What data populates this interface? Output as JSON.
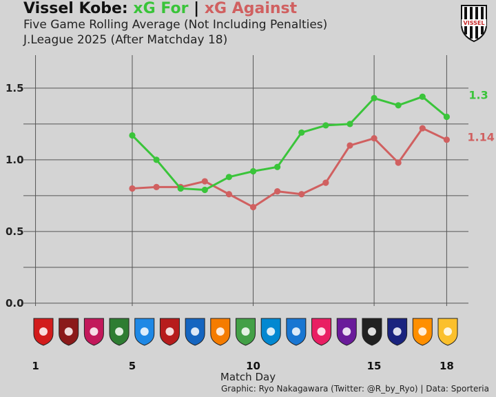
{
  "header": {
    "title_main": "Vissel Kobe:",
    "title_for": "xG For",
    "title_sep": "|",
    "title_against": "xG Against",
    "subtitle_1": "Five Game Rolling Average (Not Including Penalties)",
    "subtitle_2": "J.League 2025 (After Matchday 18)",
    "logo_text": "VISSEL"
  },
  "footer": {
    "credit": "Graphic: Ryo Nakagawara (Twitter: @R_by_Ryo) | Data: Sporteria"
  },
  "colors": {
    "xg_for": "#3ac43a",
    "xg_against": "#d06060",
    "background": "#d4d4d4",
    "grid": "#555555"
  },
  "opponent_badges": [
    {
      "md": 1,
      "color": "#d21c1c",
      "icon": "crest-red"
    },
    {
      "md": 2,
      "color": "#8b1a1a",
      "icon": "crest-maroon"
    },
    {
      "md": 3,
      "color": "#c2185b",
      "icon": "crest-pink"
    },
    {
      "md": 4,
      "color": "#2e7d32",
      "icon": "crest-green"
    },
    {
      "md": 5,
      "color": "#1e88e5",
      "icon": "crest-blue-green"
    },
    {
      "md": 6,
      "color": "#b71c1c",
      "icon": "crest-antler"
    },
    {
      "md": 7,
      "color": "#1565c0",
      "icon": "crest-yokohama"
    },
    {
      "md": 8,
      "color": "#f57c00",
      "icon": "crest-orange-blue"
    },
    {
      "md": 9,
      "color": "#43a047",
      "icon": "crest-tokyo-verdy"
    },
    {
      "md": 10,
      "color": "#0288d1",
      "icon": "crest-frontale"
    },
    {
      "md": 11,
      "color": "#1976d2",
      "icon": "crest-machida"
    },
    {
      "md": 12,
      "color": "#e91e63",
      "icon": "crest-cerezo"
    },
    {
      "md": 13,
      "color": "#6a1b9a",
      "icon": "crest-sanfrecce"
    },
    {
      "md": 14,
      "color": "#212121",
      "icon": "crest-gamba"
    },
    {
      "md": 15,
      "color": "#1a237e",
      "icon": "crest-marinos"
    },
    {
      "md": 16,
      "color": "#ff8f00",
      "icon": "crest-s-pulse"
    },
    {
      "md": 17,
      "color": "#fbc02d",
      "icon": "crest-kashiwa"
    }
  ],
  "chart_data": {
    "type": "line",
    "title": "Vissel Kobe: xG For | xG Against",
    "xlabel": "Match Day",
    "ylabel": "",
    "xlim": [
      0.5,
      18.9
    ],
    "ylim": [
      -0.02,
      1.73
    ],
    "xticks": [
      1,
      5,
      10,
      15,
      18
    ],
    "xtick_labels": [
      "1",
      "5",
      "10",
      "15",
      "18"
    ],
    "yticks": [
      0.0,
      0.5,
      1.0,
      1.5
    ],
    "ytick_labels": [
      "0.0",
      "0.5",
      "1.0",
      "1.5"
    ],
    "grid": true,
    "series": [
      {
        "name": "xG For",
        "color": "#3ac43a",
        "x": [
          5,
          6,
          7,
          8,
          9,
          10,
          11,
          12,
          13,
          14,
          15,
          16,
          17,
          18
        ],
        "values": [
          1.17,
          1.0,
          0.8,
          0.79,
          0.88,
          0.92,
          0.95,
          1.19,
          1.24,
          1.25,
          1.43,
          1.38,
          1.44,
          1.3
        ],
        "end_label": "1.3"
      },
      {
        "name": "xG Against",
        "color": "#d06060",
        "x": [
          5,
          6,
          7,
          8,
          9,
          10,
          11,
          12,
          13,
          14,
          15,
          16,
          17,
          18
        ],
        "values": [
          0.8,
          0.81,
          0.81,
          0.85,
          0.76,
          0.67,
          0.78,
          0.76,
          0.84,
          1.1,
          1.15,
          0.98,
          1.22,
          1.14
        ],
        "end_label": "1.14"
      }
    ]
  }
}
